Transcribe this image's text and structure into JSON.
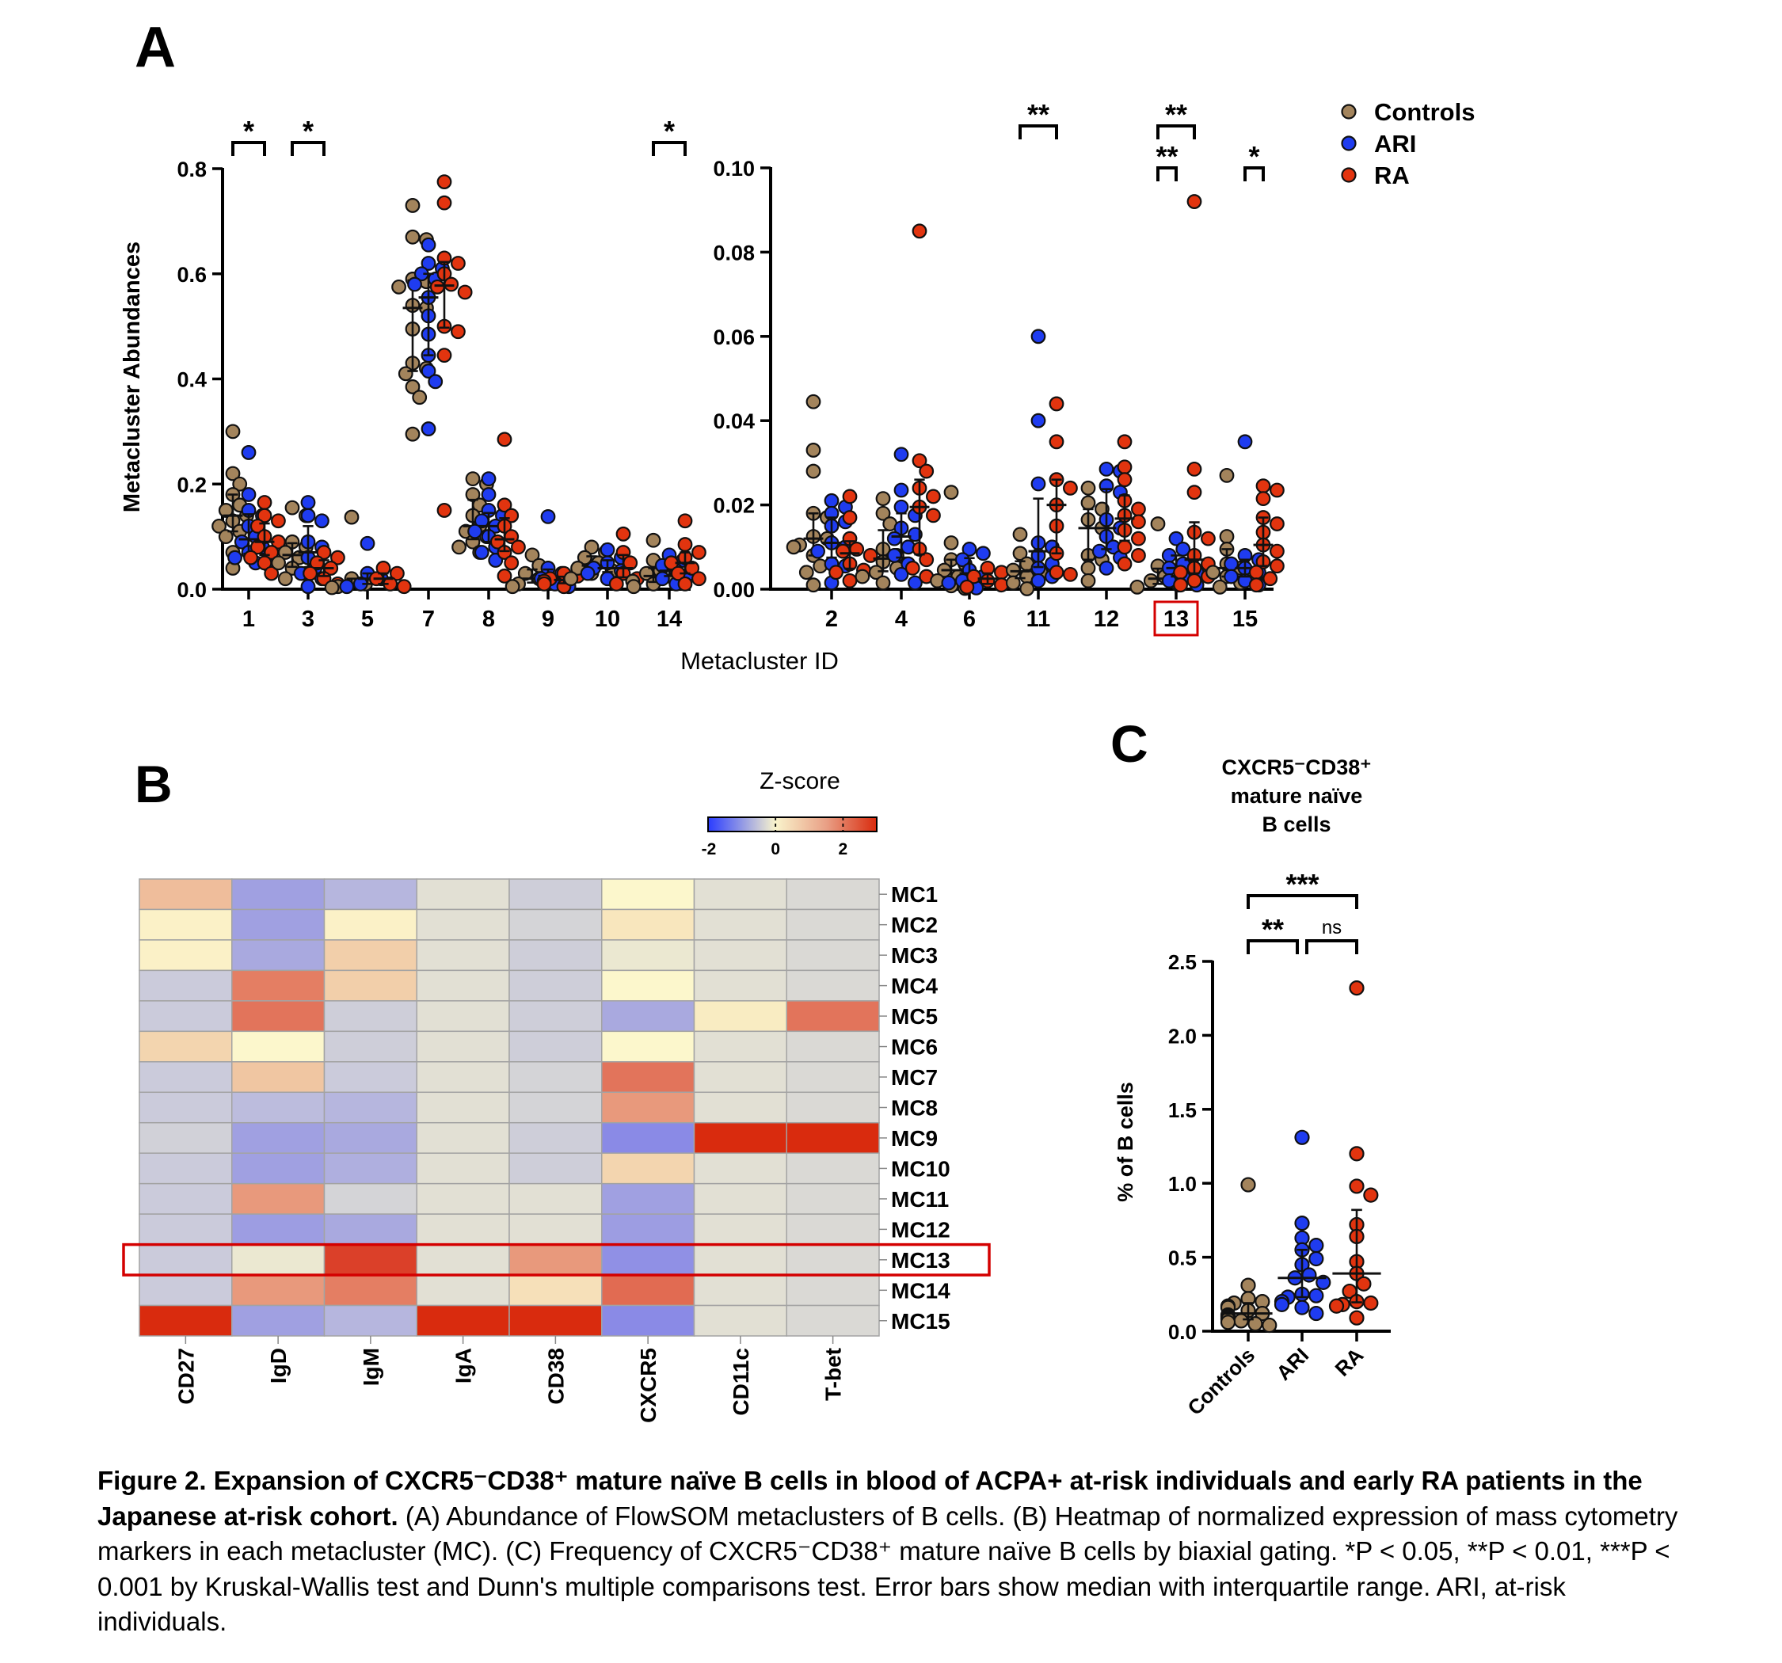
{
  "panel_labels": {
    "a": "A",
    "b": "B",
    "c": "C"
  },
  "legend": [
    {
      "label": "Controls",
      "color": "#a3845c"
    },
    {
      "label": "ARI",
      "color": "#1f3cf0"
    },
    {
      "label": "RA",
      "color": "#e2340f"
    }
  ],
  "highlight_color": "#d40000",
  "chart_data": [
    {
      "type": "scatter",
      "panel": "A-left",
      "ylabel": "Metacluster Abundances",
      "xlabel": "Metacluster ID",
      "ylim": [
        0,
        0.8
      ],
      "yticks": [
        "0.0",
        "0.2",
        "0.4",
        "0.6",
        "0.8"
      ],
      "categories": [
        "1",
        "3",
        "5",
        "7",
        "8",
        "9",
        "10",
        "14"
      ],
      "error_bars": "median with interquartile range",
      "series": [
        {
          "category": "1",
          "groups": {
            "Controls": [
              0.3,
              0.22,
              0.2,
              0.18,
              0.16,
              0.15,
              0.14,
              0.13,
              0.12,
              0.11,
              0.1,
              0.07,
              0.04
            ],
            "ARI": [
              0.26,
              0.18,
              0.15,
              0.14,
              0.12,
              0.1,
              0.09,
              0.08,
              0.07,
              0.06,
              0.05,
              0.045
            ],
            "RA": [
              0.165,
              0.14,
              0.13,
              0.12,
              0.1,
              0.09,
              0.08,
              0.07,
              0.06,
              0.05,
              0.03
            ]
          }
        },
        {
          "category": "3",
          "groups": {
            "Controls": [
              0.155,
              0.14,
              0.09,
              0.08,
              0.07,
              0.06,
              0.05,
              0.04,
              0.03,
              0.02
            ],
            "ARI": [
              0.165,
              0.14,
              0.13,
              0.09,
              0.08,
              0.06,
              0.04,
              0.03,
              0.02,
              0.005
            ],
            "RA": [
              0.07,
              0.06,
              0.05,
              0.04,
              0.03,
              0.02,
              0.01
            ]
          }
        },
        {
          "category": "5",
          "groups": {
            "Controls": [
              0.137,
              0.02,
              0.01,
              0.005,
              0.003
            ],
            "ARI": [
              0.087,
              0.03,
              0.02,
              0.01,
              0.005
            ],
            "RA": [
              0.04,
              0.03,
              0.02,
              0.01,
              0.005
            ]
          }
        },
        {
          "category": "7",
          "groups": {
            "Controls": [
              0.73,
              0.67,
              0.665,
              0.59,
              0.585,
              0.575,
              0.54,
              0.535,
              0.495,
              0.43,
              0.42,
              0.41,
              0.385,
              0.365,
              0.295
            ],
            "ARI": [
              0.655,
              0.62,
              0.61,
              0.6,
              0.59,
              0.58,
              0.555,
              0.52,
              0.485,
              0.445,
              0.415,
              0.395,
              0.305
            ],
            "RA": [
              0.775,
              0.735,
              0.63,
              0.62,
              0.6,
              0.58,
              0.575,
              0.565,
              0.5,
              0.49,
              0.445,
              0.15
            ]
          }
        },
        {
          "category": "8",
          "groups": {
            "Controls": [
              0.21,
              0.2,
              0.18,
              0.16,
              0.14,
              0.12,
              0.11,
              0.1,
              0.09,
              0.08,
              0.07
            ],
            "ARI": [
              0.21,
              0.18,
              0.15,
              0.14,
              0.13,
              0.12,
              0.11,
              0.1,
              0.08,
              0.07,
              0.055
            ],
            "RA": [
              0.285,
              0.16,
              0.14,
              0.12,
              0.1,
              0.09,
              0.08,
              0.07,
              0.05,
              0.025
            ]
          }
        },
        {
          "category": "9",
          "groups": {
            "Controls": [
              0.065,
              0.045,
              0.03,
              0.02,
              0.015,
              0.01,
              0.005
            ],
            "ARI": [
              0.138,
              0.04,
              0.03,
              0.02,
              0.01,
              0.005
            ],
            "RA": [
              0.03,
              0.025,
              0.02,
              0.015,
              0.01,
              0.005
            ]
          }
        },
        {
          "category": "10",
          "groups": {
            "Controls": [
              0.08,
              0.07,
              0.06,
              0.05,
              0.04,
              0.035,
              0.03,
              0.02
            ],
            "ARI": [
              0.075,
              0.06,
              0.05,
              0.04,
              0.035,
              0.03,
              0.02
            ],
            "RA": [
              0.105,
              0.07,
              0.05,
              0.03,
              0.02,
              0.01
            ]
          }
        },
        {
          "category": "14",
          "groups": {
            "Controls": [
              0.093,
              0.055,
              0.035,
              0.03,
              0.02,
              0.015,
              0.01,
              0.005
            ],
            "ARI": [
              0.065,
              0.055,
              0.045,
              0.035,
              0.03,
              0.02,
              0.01
            ],
            "RA": [
              0.13,
              0.085,
              0.07,
              0.06,
              0.05,
              0.04,
              0.03,
              0.02,
              0.01
            ]
          }
        }
      ],
      "significance": [
        {
          "category": "1",
          "from": "Controls",
          "to": "RA",
          "label": "*",
          "level": 0
        },
        {
          "category": "3",
          "from": "Controls",
          "to": "RA",
          "label": "*",
          "level": 0
        },
        {
          "category": "14",
          "from": "Controls",
          "to": "RA",
          "label": "*",
          "level": 0
        }
      ]
    },
    {
      "type": "scatter",
      "panel": "A-right",
      "ylim": [
        0,
        0.1
      ],
      "yticks": [
        "0.00",
        "0.02",
        "0.04",
        "0.06",
        "0.08",
        "0.10"
      ],
      "categories": [
        "2",
        "4",
        "6",
        "11",
        "12",
        "13",
        "15"
      ],
      "highlighted_category": "13",
      "error_bars": "median with interquartile range",
      "series": [
        {
          "category": "2",
          "groups": {
            "Controls": [
              0.0445,
              0.033,
              0.028,
              0.018,
              0.017,
              0.0125,
              0.012,
              0.0105,
              0.01,
              0.008,
              0.0055,
              0.004,
              0.001
            ],
            "ARI": [
              0.021,
              0.0195,
              0.018,
              0.016,
              0.015,
              0.011,
              0.01,
              0.009,
              0.006,
              0.0055,
              0.0015
            ],
            "RA": [
              0.022,
              0.017,
              0.012,
              0.0095,
              0.009,
              0.008,
              0.006,
              0.0045,
              0.004,
              0.002
            ]
          }
        },
        {
          "category": "4",
          "groups": {
            "Controls": [
              0.0215,
              0.018,
              0.0155,
              0.0095,
              0.008,
              0.0065,
              0.005,
              0.004,
              0.003,
              0.0015
            ],
            "ARI": [
              0.032,
              0.0235,
              0.0195,
              0.0175,
              0.0145,
              0.013,
              0.012,
              0.01,
              0.008,
              0.006,
              0.0035,
              0.0015
            ],
            "RA": [
              0.085,
              0.0305,
              0.028,
              0.024,
              0.022,
              0.0195,
              0.0175,
              0.0095,
              0.007,
              0.005,
              0.003
            ]
          }
        },
        {
          "category": "6",
          "groups": {
            "Controls": [
              0.023,
              0.011,
              0.007,
              0.006,
              0.0045,
              0.003,
              0.002,
              0.0008,
              0.0002
            ],
            "ARI": [
              0.0095,
              0.0085,
              0.007,
              0.0045,
              0.003,
              0.002,
              0.0015,
              0.0003
            ],
            "RA": [
              0.005,
              0.004,
              0.003,
              0.002,
              0.001,
              0.0005
            ]
          }
        },
        {
          "category": "11",
          "groups": {
            "Controls": [
              0.013,
              0.0085,
              0.006,
              0.0045,
              0.004,
              0.003,
              0.0015,
              0.0001
            ],
            "ARI": [
              0.06,
              0.04,
              0.025,
              0.011,
              0.01,
              0.008,
              0.006,
              0.005,
              0.003,
              0.002
            ],
            "RA": [
              0.044,
              0.035,
              0.026,
              0.024,
              0.02,
              0.015,
              0.0085,
              0.004,
              0.0035
            ]
          }
        },
        {
          "category": "12",
          "groups": {
            "Controls": [
              0.024,
              0.0205,
              0.019,
              0.0165,
              0.0145,
              0.008,
              0.007,
              0.005,
              0.002
            ],
            "ARI": [
              0.0285,
              0.028,
              0.0245,
              0.023,
              0.0165,
              0.0145,
              0.0125,
              0.01,
              0.009,
              0.0075,
              0.005
            ],
            "RA": [
              0.035,
              0.029,
              0.026,
              0.021,
              0.019,
              0.0175,
              0.016,
              0.014,
              0.012,
              0.01,
              0.008,
              0.006
            ]
          }
        },
        {
          "category": "13",
          "groups": {
            "Controls": [
              0.0155,
              0.0055,
              0.003,
              0.002,
              0.001,
              0.0005
            ],
            "ARI": [
              0.012,
              0.0095,
              0.008,
              0.006,
              0.005,
              0.004,
              0.003,
              0.002,
              0.001
            ],
            "RA": [
              0.092,
              0.0285,
              0.023,
              0.0135,
              0.012,
              0.008,
              0.006,
              0.005,
              0.004,
              0.003,
              0.002,
              0.001
            ]
          }
        },
        {
          "category": "15",
          "groups": {
            "Controls": [
              0.027,
              0.0125,
              0.0095,
              0.006,
              0.005,
              0.004,
              0.003,
              0.0015,
              0.0005
            ],
            "ARI": [
              0.035,
              0.008,
              0.007,
              0.006,
              0.005,
              0.004,
              0.003,
              0.002,
              0.001
            ],
            "RA": [
              0.0245,
              0.0235,
              0.0215,
              0.017,
              0.0155,
              0.0135,
              0.0105,
              0.009,
              0.0065,
              0.0055,
              0.004,
              0.0025,
              0.001
            ]
          }
        }
      ],
      "significance": [
        {
          "category": "11",
          "from": "Controls",
          "to": "RA",
          "label": "**",
          "level": 1
        },
        {
          "category": "13",
          "from": "Controls",
          "to": "RA",
          "label": "**",
          "level": 1
        },
        {
          "category": "13",
          "from": "Controls",
          "to": "ARI",
          "label": "**",
          "level": 0
        },
        {
          "category": "15",
          "from": "ARI",
          "to": "RA",
          "label": "*",
          "level": 0
        }
      ]
    },
    {
      "type": "heatmap",
      "panel": "B",
      "title": "Z-score",
      "colorbar_range": [
        -2,
        3
      ],
      "colorbar_ticks": [
        "-2",
        "0",
        "2"
      ],
      "columns": [
        "CD27",
        "IgD",
        "IgM",
        "IgA",
        "CD38",
        "CXCR5",
        "CD11c",
        "T-bet"
      ],
      "rows": [
        "MC1",
        "MC2",
        "MC3",
        "MC4",
        "MC5",
        "MC6",
        "MC7",
        "MC8",
        "MC9",
        "MC10",
        "MC11",
        "MC12",
        "MC13",
        "MC14",
        "MC15"
      ],
      "highlighted_row": "MC13",
      "values": [
        [
          1.2,
          -1.3,
          -0.9,
          0,
          -0.4,
          0.3,
          0,
          -0.1
        ],
        [
          0.4,
          -1.3,
          0.4,
          0,
          -0.2,
          0.6,
          0,
          -0.1
        ],
        [
          0.4,
          -1.1,
          1.0,
          0,
          -0.4,
          0.1,
          0,
          -0.1
        ],
        [
          -0.5,
          1.9,
          1.0,
          0,
          -0.4,
          0.3,
          0,
          -0.1
        ],
        [
          -0.5,
          2.0,
          -0.4,
          0,
          -0.4,
          -1.1,
          0.5,
          2.0
        ],
        [
          0.9,
          0.3,
          -0.4,
          0,
          -0.4,
          0.3,
          0,
          -0.1
        ],
        [
          -0.5,
          1.1,
          -0.5,
          0,
          -0.2,
          2.0,
          0,
          -0.1
        ],
        [
          -0.5,
          -0.8,
          -0.9,
          0,
          -0.2,
          1.6,
          0,
          -0.1
        ],
        [
          -0.3,
          -1.3,
          -1.1,
          0,
          -0.4,
          -2.0,
          3.0,
          3.0
        ],
        [
          -0.5,
          -1.3,
          -1.0,
          0,
          -0.4,
          0.9,
          0,
          -0.1
        ],
        [
          -0.5,
          1.6,
          -0.2,
          0,
          0,
          -1.3,
          0,
          -0.1
        ],
        [
          -0.5,
          -1.4,
          -1.1,
          0,
          0,
          -1.4,
          0,
          -0.1
        ],
        [
          -0.5,
          0.1,
          2.6,
          0,
          1.6,
          -1.8,
          0,
          -0.1
        ],
        [
          -0.5,
          1.6,
          1.9,
          0,
          0.7,
          2.1,
          0,
          -0.1
        ],
        [
          3.0,
          -1.3,
          -0.9,
          3.0,
          3.0,
          -2.0,
          0,
          -0.1
        ]
      ]
    },
    {
      "type": "scatter",
      "panel": "C",
      "title_lines": [
        "CXCR5⁻CD38⁺",
        "mature naïve",
        "B cells"
      ],
      "ylabel": "% of B cells",
      "ylim": [
        0,
        2.5
      ],
      "yticks": [
        "0.0",
        "0.5",
        "1.0",
        "1.5",
        "2.0",
        "2.5"
      ],
      "categories": [
        "Controls",
        "ARI",
        "RA"
      ],
      "error_bars": "median with interquartile range",
      "series": [
        {
          "category": "Controls",
          "groups": {
            "Controls": [
              0.99,
              0.31,
              0.22,
              0.2,
              0.19,
              0.17,
              0.16,
              0.14,
              0.12,
              0.11,
              0.1,
              0.09,
              0.08,
              0.07,
              0.06,
              0.05,
              0.04
            ]
          }
        },
        {
          "category": "ARI",
          "groups": {
            "ARI": [
              1.31,
              0.73,
              0.63,
              0.58,
              0.55,
              0.49,
              0.45,
              0.38,
              0.36,
              0.33,
              0.25,
              0.24,
              0.23,
              0.2,
              0.18,
              0.16,
              0.12
            ]
          }
        },
        {
          "category": "RA",
          "groups": {
            "RA": [
              2.32,
              1.2,
              0.98,
              0.92,
              0.72,
              0.64,
              0.47,
              0.39,
              0.32,
              0.27,
              0.2,
              0.19,
              0.18,
              0.17,
              0.09
            ]
          }
        }
      ],
      "significance": [
        {
          "from_category": "Controls",
          "to_category": "RA",
          "label": "***",
          "level": 1
        },
        {
          "from_category": "Controls",
          "to_category": "ARI",
          "label": "**",
          "level": 0
        },
        {
          "from_category": "ARI",
          "to_category": "RA",
          "label": "ns",
          "level": 0
        }
      ]
    }
  ],
  "caption": {
    "bold": "Figure 2. Expansion of CXCR5⁻CD38⁺ mature naïve B cells in blood of ACPA+ at-risk individuals and early RA patients in the Japanese at-risk cohort.",
    "text": " (A) Abundance of FlowSOM metaclusters of B cells. (B) Heatmap of normalized expression of mass cytometry markers in each metacluster (MC). (C) Frequency of CXCR5⁻CD38⁺ mature naïve B cells by biaxial gating. *P < 0.05, **P < 0.01, ***P < 0.001 by Kruskal-Wallis test and Dunn's multiple comparisons test. Error bars show median with interquartile range. ARI, at-risk individuals."
  }
}
